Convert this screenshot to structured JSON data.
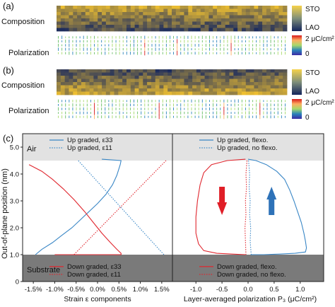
{
  "panels": {
    "a": {
      "label": "(a)",
      "row_labels": {
        "composition": "Composition",
        "polarization": "Polarization"
      },
      "composition_colorbar": {
        "top": "STO",
        "bottom": "LAO"
      },
      "polarization_colorbar": {
        "top": "2 μC/cm²",
        "bottom": "0"
      }
    },
    "b": {
      "label": "(b)",
      "row_labels": {
        "composition": "Composition",
        "polarization": "Polarization"
      },
      "composition_colorbar": {
        "top": "STO",
        "bottom": "LAO"
      },
      "polarization_colorbar": {
        "top": "2 μC/cm²",
        "bottom": "0"
      }
    },
    "c": {
      "label": "(c)"
    }
  },
  "colors": {
    "sto": "#f2c230",
    "lao": "#1a2a5e",
    "up": "#3a87c6",
    "down": "#e0262e",
    "air_bg": "#e2e2e2",
    "substrate_bg": "#7a7a7a",
    "arrow_down": "#e01e27",
    "arrow_up": "#2e72b8"
  },
  "chart_data": [
    {
      "type": "line",
      "xlabel": "Strain ε components",
      "ylabel": "Out-of-plane position (nm)",
      "xlim": [
        -1.75,
        1.75
      ],
      "ylim": [
        0,
        5.5
      ],
      "x_ticks": [
        -1.5,
        -1.0,
        -0.5,
        0.0,
        0.5,
        1.0,
        1.5
      ],
      "x_tick_labels": [
        "-1.5%",
        "-1.0%",
        "-0.5%",
        "0.0%",
        "0.5%",
        "1.0%",
        "1.5%"
      ],
      "y_ticks": [
        0,
        1.0,
        2.0,
        3.0,
        4.0,
        5.0
      ],
      "y_tick_labels": [
        "0",
        "1.0",
        "2.0",
        "3.0",
        "4.0",
        "5.0"
      ],
      "regions": [
        {
          "label": "Air",
          "y_range": [
            4.5,
            5.5
          ]
        },
        {
          "label": "Substrate",
          "y_range": [
            0,
            1.0
          ]
        }
      ],
      "legend_top": [
        "Up graded, ε33",
        "Up graded, ε11"
      ],
      "legend_bottom": [
        "Down graded, ε33",
        "Down graded, ε11"
      ],
      "series": [
        {
          "name": "Up graded, ε33",
          "style": "solid",
          "color": "up",
          "x": [
            -1.45,
            -1.3,
            -1.05,
            -0.85,
            -0.6,
            -0.4,
            -0.2,
            0.0,
            0.2,
            0.35,
            0.45,
            0.5,
            0.53,
            0.55,
            0.1
          ],
          "y": [
            1.0,
            1.2,
            1.45,
            1.7,
            2.0,
            2.3,
            2.6,
            2.9,
            3.25,
            3.6,
            3.95,
            4.2,
            4.35,
            4.5,
            4.55
          ]
        },
        {
          "name": "Up graded, ε11",
          "style": "dotted",
          "color": "up",
          "x": [
            1.55,
            -0.45
          ],
          "y": [
            1.0,
            4.5
          ]
        },
        {
          "name": "Down graded, ε33",
          "style": "solid",
          "color": "down",
          "x": [
            -1.6,
            -1.3,
            -1.05,
            -0.8,
            -0.55,
            -0.3,
            -0.1,
            0.1,
            0.3,
            0.45,
            0.55,
            0.55,
            -1.0
          ],
          "y": [
            4.35,
            4.1,
            3.8,
            3.45,
            3.05,
            2.6,
            2.2,
            1.8,
            1.45,
            1.2,
            1.05,
            1.0,
            1.0
          ]
        },
        {
          "name": "Down graded, ε11",
          "style": "dotted",
          "color": "down",
          "x": [
            -0.55,
            1.6
          ],
          "y": [
            1.0,
            4.5
          ]
        }
      ]
    },
    {
      "type": "line",
      "xlabel": "Layer-averaged polarization P₃ (μC/cm²)",
      "xlim": [
        -1.45,
        1.45
      ],
      "ylim": [
        0,
        5.5
      ],
      "x_ticks": [
        -1.0,
        -0.5,
        0.0,
        0.5,
        1.0
      ],
      "x_tick_labels": [
        "-1.0",
        "-0.5",
        "0.0",
        "0.5",
        "1.0"
      ],
      "legend_top": [
        "Up graded, flexo.",
        "Up graded, no flexo."
      ],
      "legend_bottom": [
        "Down graded, flexo.",
        "Down graded, no flexo."
      ],
      "series": [
        {
          "name": "Up graded, flexo.",
          "style": "solid",
          "color": "up",
          "x": [
            0.0,
            0.15,
            0.35,
            0.55,
            0.7,
            0.8,
            0.88,
            0.95,
            1.02,
            1.07,
            1.1,
            1.12,
            1.1,
            0.9,
            0.6,
            0.3,
            0.05
          ],
          "y": [
            4.55,
            4.5,
            4.35,
            4.1,
            3.8,
            3.4,
            3.0,
            2.6,
            2.2,
            1.8,
            1.5,
            1.25,
            1.1,
            1.05,
            1.02,
            1.0,
            1.0
          ]
        },
        {
          "name": "Up graded, no flexo.",
          "style": "dotted",
          "color": "up",
          "x": [
            0.01,
            0.03,
            0.02,
            0.04,
            0.03,
            0.05,
            0.04,
            0.06
          ],
          "y": [
            4.5,
            4.0,
            3.5,
            3.0,
            2.5,
            2.0,
            1.5,
            1.0
          ]
        },
        {
          "name": "Down graded, flexo.",
          "style": "solid",
          "color": "down",
          "x": [
            -0.05,
            -0.4,
            -0.7,
            -0.85,
            -0.92,
            -0.97,
            -1.0,
            -1.0,
            -0.95,
            -0.85,
            -0.6,
            -0.3,
            -0.05
          ],
          "y": [
            4.55,
            4.5,
            4.35,
            4.05,
            3.6,
            3.0,
            2.4,
            1.8,
            1.4,
            1.15,
            1.05,
            1.02,
            1.0
          ]
        },
        {
          "name": "Down graded, no flexo.",
          "style": "dotted",
          "color": "down",
          "x": [
            -0.02,
            -0.04,
            -0.03,
            -0.05,
            -0.04,
            -0.06,
            -0.05,
            -0.04
          ],
          "y": [
            4.5,
            4.0,
            3.5,
            3.0,
            2.5,
            2.0,
            1.5,
            1.0
          ]
        }
      ],
      "annotations": [
        {
          "type": "arrow",
          "direction": "down",
          "x": -0.5,
          "y": 3.0,
          "color": "arrow_down"
        },
        {
          "type": "arrow",
          "direction": "up",
          "x": 0.45,
          "y": 3.0,
          "color": "arrow_up"
        }
      ]
    }
  ]
}
